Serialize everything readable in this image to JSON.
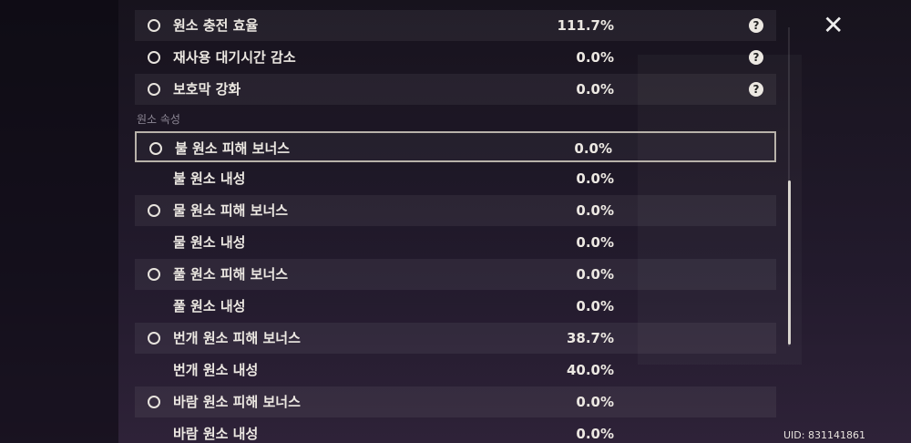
{
  "stats": [
    {
      "label": "원소 충전 효율",
      "value": "111.7%"
    },
    {
      "label": "재사용 대기시간 감소",
      "value": "0.0%"
    },
    {
      "label": "보호막 강화",
      "value": "0.0%"
    }
  ],
  "section": {
    "title": "원소 속성",
    "rows": [
      {
        "label": "불 원소 피해 보너스",
        "value": "0.0%"
      },
      {
        "label": "불 원소 내성",
        "value": "0.0%"
      },
      {
        "label": "물 원소 피해 보너스",
        "value": "0.0%"
      },
      {
        "label": "물 원소 내성",
        "value": "0.0%"
      },
      {
        "label": "풀 원소 피해 보너스",
        "value": "0.0%"
      },
      {
        "label": "풀 원소 내성",
        "value": "0.0%"
      },
      {
        "label": "번개 원소 피해 보너스",
        "value": "38.7%"
      },
      {
        "label": "번개 원소 내성",
        "value": "40.0%"
      },
      {
        "label": "바람 원소 피해 보너스",
        "value": "0.0%"
      },
      {
        "label": "바람 원소 내성",
        "value": "0.0%"
      }
    ]
  },
  "uid": "UID: 831141861"
}
